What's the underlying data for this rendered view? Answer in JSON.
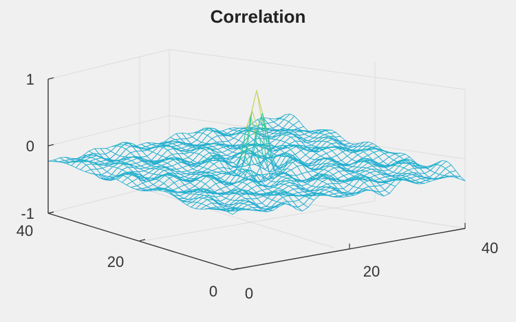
{
  "chart_data": {
    "type": "surface-mesh",
    "title": "Correlation",
    "xlabel": "",
    "ylabel": "",
    "zlabel": "",
    "x_range": [
      0,
      40
    ],
    "y_range": [
      0,
      40
    ],
    "z_range": [
      -1,
      1
    ],
    "x_ticks": [
      "0",
      "20",
      "40"
    ],
    "y_ticks": [
      "0",
      "20",
      "40"
    ],
    "z_ticks": [
      "-1",
      "0",
      "1"
    ],
    "grid": true,
    "peak": {
      "x": 20,
      "y": 20,
      "z": 0.72
    },
    "background_level": -0.2,
    "background_amplitude": 0.06,
    "colormap": [
      "#29a3d9",
      "#23b8c8",
      "#2fc79c",
      "#8bcf62",
      "#f2d35a"
    ]
  }
}
